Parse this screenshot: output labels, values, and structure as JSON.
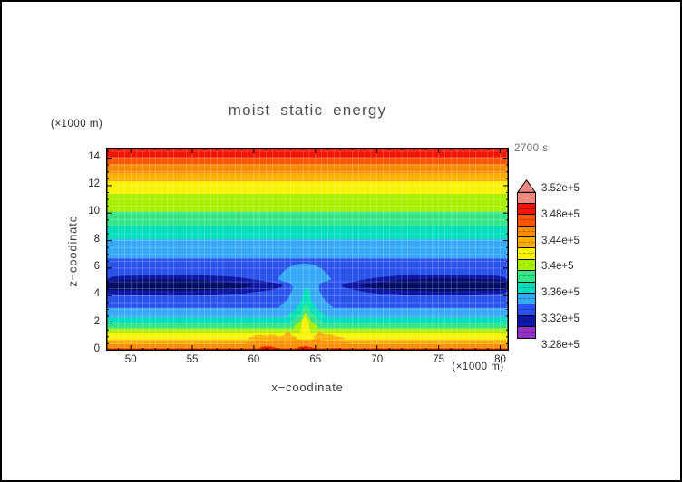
{
  "figure": {
    "title": "moist static energy",
    "time_label": "2700 s",
    "top_left_unit": "(×1000 m)",
    "bottom_right_unit": "(×1000 m)",
    "x_axis_label": "x−coodinate",
    "y_axis_label": "z−coodinate"
  },
  "chart_data": {
    "type": "filled_contour",
    "title": "moist static energy",
    "time": "2700 s",
    "xlabel": "x−coodinate",
    "ylabel": "z−coodinate",
    "x_unit": "(×1000 m)",
    "y_unit": "(×1000 m)",
    "x_range": [
      48.0,
      80.7
    ],
    "z_range": [
      0,
      14.76
    ],
    "x_ticks": [
      50,
      55,
      60,
      65,
      70,
      75,
      80
    ],
    "x_minor_tick_step": 1,
    "z_ticks": [
      0,
      2,
      4,
      6,
      8,
      10,
      12,
      14
    ],
    "z_minor_tick_step": 0.5,
    "grid": {
      "show": true,
      "step_x": 0.5,
      "step_z": 0.5,
      "color": "rgba(255,255,255,0.33)"
    },
    "colorbar": {
      "labels": [
        "3.52e+5",
        "3.48e+5",
        "3.44e+5",
        "3.4e+5",
        "3.36e+5",
        "3.32e+5",
        "3.28e+5"
      ],
      "arrow_color": "#F1887F",
      "bands_top_to_bottom": [
        {
          "color": "#F1887F",
          "from": 350000,
          "to": 352000
        },
        {
          "color": "#F01505",
          "from": 348000,
          "to": 350000
        },
        {
          "color": "#FA5500",
          "from": 346000,
          "to": 348000
        },
        {
          "color": "#FB8C00",
          "from": 344000,
          "to": 346000
        },
        {
          "color": "#FCAE00",
          "from": 342000,
          "to": 344000
        },
        {
          "color": "#FAF300",
          "from": 340000,
          "to": 342000
        },
        {
          "color": "#A9EF00",
          "from": 338000,
          "to": 340000
        },
        {
          "color": "#35E689",
          "from": 336000,
          "to": 338000
        },
        {
          "color": "#00DFBB",
          "from": 334000,
          "to": 336000
        },
        {
          "color": "#36A8F8",
          "from": 332000,
          "to": 334000
        },
        {
          "color": "#2A52EC",
          "from": 330000,
          "to": 332000
        },
        {
          "color": "#0E18A4",
          "from": 328000,
          "to": 330000
        },
        {
          "color": "#9231C8",
          "from": 326000,
          "to": 328000
        }
      ]
    },
    "background_layers": [
      {
        "value_band": "348000-350000",
        "color": "#F01505",
        "z": [
          14.05,
          14.76
        ]
      },
      {
        "value_band": "346000-348000",
        "color": "#FA5500",
        "z": [
          13.55,
          14.05
        ]
      },
      {
        "value_band": "344000-346000",
        "color": "#FB8C00",
        "z": [
          12.9,
          13.55
        ]
      },
      {
        "value_band": "342000-344000",
        "color": "#FCAE00",
        "z": [
          12.3,
          12.9
        ]
      },
      {
        "value_band": "340000-342000",
        "color": "#FAF300",
        "z": [
          11.4,
          12.3
        ]
      },
      {
        "value_band": "338000-340000",
        "color": "#A9EF00",
        "z": [
          10.1,
          11.4
        ]
      },
      {
        "value_band": "336000-338000",
        "color": "#35E689",
        "z": [
          9.1,
          10.1
        ]
      },
      {
        "value_band": "334000-336000",
        "color": "#00DFBB",
        "z": [
          8.1,
          9.1
        ]
      },
      {
        "value_band": "332000-334000",
        "color": "#36A8F8",
        "z": [
          6.7,
          8.1
        ]
      },
      {
        "value_band": "330000-332000",
        "color": "#2A52EC",
        "z": [
          3.1,
          6.7
        ]
      },
      {
        "value_band": "332000-334000",
        "color": "#36A8F8",
        "z": [
          2.4,
          3.1
        ]
      },
      {
        "value_band": "334000-336000",
        "color": "#00DFBB",
        "z": [
          2.0,
          2.4
        ]
      },
      {
        "value_band": "336000-338000",
        "color": "#35E689",
        "z": [
          1.6,
          2.0
        ]
      },
      {
        "value_band": "338000-340000",
        "color": "#A9EF00",
        "z": [
          1.25,
          1.6
        ]
      },
      {
        "value_band": "340000-342000",
        "color": "#FAF300",
        "z": [
          0.78,
          1.25
        ]
      },
      {
        "value_band": "342000-344000",
        "color": "#FCAE00",
        "z": [
          0.46,
          0.78
        ]
      },
      {
        "value_band": "344000-346000",
        "color": "#FB8C00",
        "z": [
          0.2,
          0.46
        ]
      },
      {
        "value_band": "346000-348000",
        "color": "#FA5500",
        "z": [
          0.0,
          0.2
        ]
      }
    ],
    "features": [
      {
        "name": "mse-minimum-navy-band-left",
        "color": "#0E18A4",
        "smooth": true,
        "points": [
          [
            47.9,
            5.38
          ],
          [
            50,
            5.45
          ],
          [
            53,
            5.5
          ],
          [
            56,
            5.48
          ],
          [
            58.5,
            5.38
          ],
          [
            60.3,
            5.12
          ],
          [
            61.7,
            4.95
          ],
          [
            62.55,
            4.72
          ],
          [
            61.7,
            4.45
          ],
          [
            60.3,
            4.28
          ],
          [
            58.5,
            4.08
          ],
          [
            56,
            4.0
          ],
          [
            53,
            3.98
          ],
          [
            50,
            4.05
          ],
          [
            47.9,
            4.02
          ]
        ]
      },
      {
        "name": "mse-minimum-navy-band-right",
        "color": "#0E18A4",
        "smooth": true,
        "points": [
          [
            80.8,
            5.42
          ],
          [
            78,
            5.5
          ],
          [
            75,
            5.55
          ],
          [
            72,
            5.5
          ],
          [
            69.8,
            5.3
          ],
          [
            68.2,
            5.05
          ],
          [
            66.8,
            4.72
          ],
          [
            68.2,
            4.4
          ],
          [
            69.8,
            4.15
          ],
          [
            72,
            4.02
          ],
          [
            75,
            3.98
          ],
          [
            78,
            4.02
          ],
          [
            80.8,
            4.08
          ]
        ]
      },
      {
        "name": "mse-minimum-dark-core-left",
        "color": "#010C66",
        "smooth": true,
        "points": [
          [
            47.9,
            5.05
          ],
          [
            50,
            5.15
          ],
          [
            53,
            5.2
          ],
          [
            56,
            5.1
          ],
          [
            58.5,
            4.95
          ],
          [
            60.2,
            4.72
          ],
          [
            58.5,
            4.5
          ],
          [
            56,
            4.38
          ],
          [
            53,
            4.35
          ],
          [
            50,
            4.4
          ],
          [
            47.9,
            4.42
          ]
        ]
      },
      {
        "name": "mse-minimum-dark-core-right",
        "color": "#010C66",
        "smooth": true,
        "points": [
          [
            80.8,
            5.12
          ],
          [
            78,
            5.22
          ],
          [
            75,
            5.25
          ],
          [
            72,
            5.15
          ],
          [
            69.9,
            4.95
          ],
          [
            68.35,
            4.72
          ],
          [
            69.9,
            4.5
          ],
          [
            72,
            4.38
          ],
          [
            75,
            4.32
          ],
          [
            78,
            4.35
          ],
          [
            80.8,
            4.4
          ]
        ]
      },
      {
        "name": "updraft-plume-sky-blue",
        "color": "#36A8F8",
        "smooth": true,
        "points": [
          [
            61.85,
            3.05
          ],
          [
            62.3,
            3.35
          ],
          [
            62.75,
            3.75
          ],
          [
            63.05,
            4.2
          ],
          [
            63.2,
            4.65
          ],
          [
            62.9,
            4.95
          ],
          [
            62.3,
            5.05
          ],
          [
            61.95,
            5.2
          ],
          [
            61.95,
            5.2
          ],
          [
            62.3,
            5.7
          ],
          [
            62.8,
            6.05
          ],
          [
            63.4,
            6.28
          ],
          [
            64.1,
            6.35
          ],
          [
            64.8,
            6.28
          ],
          [
            65.35,
            6.05
          ],
          [
            65.85,
            5.7
          ],
          [
            66.3,
            5.2
          ],
          [
            66.3,
            5.2
          ],
          [
            65.9,
            5.03
          ],
          [
            65.4,
            4.93
          ],
          [
            65.25,
            4.6
          ],
          [
            65.4,
            4.15
          ],
          [
            65.75,
            3.7
          ],
          [
            66.2,
            3.3
          ],
          [
            66.65,
            3.05
          ]
        ]
      },
      {
        "name": "updraft-plume-teal-cone",
        "color": "#00DFBB",
        "smooth": true,
        "points": [
          [
            62.35,
            2.38
          ],
          [
            62.9,
            2.7
          ],
          [
            63.45,
            3.1
          ],
          [
            63.8,
            3.55
          ],
          [
            63.95,
            4.0
          ],
          [
            64.05,
            4.4
          ],
          [
            64.3,
            4.62
          ],
          [
            64.3,
            4.62
          ],
          [
            64.55,
            4.35
          ],
          [
            64.6,
            3.95
          ],
          [
            64.75,
            3.5
          ],
          [
            65.1,
            3.05
          ],
          [
            65.6,
            2.7
          ],
          [
            66.15,
            2.38
          ]
        ]
      },
      {
        "name": "updraft-plume-green-cone",
        "color": "#35E689",
        "smooth": true,
        "points": [
          [
            62.7,
            1.98
          ],
          [
            63.3,
            2.35
          ],
          [
            63.8,
            2.75
          ],
          [
            64.1,
            3.2
          ],
          [
            64.2,
            3.5
          ],
          [
            64.2,
            3.5
          ],
          [
            64.45,
            3.15
          ],
          [
            64.7,
            2.7
          ],
          [
            65.2,
            2.3
          ],
          [
            65.8,
            1.98
          ]
        ]
      },
      {
        "name": "updraft-plume-chartreuse-cone",
        "color": "#A9EF00",
        "smooth": true,
        "points": [
          [
            63.0,
            1.58
          ],
          [
            63.55,
            1.95
          ],
          [
            63.95,
            2.35
          ],
          [
            64.2,
            2.8
          ],
          [
            64.2,
            2.8
          ],
          [
            64.45,
            2.4
          ],
          [
            64.75,
            2.0
          ],
          [
            65.55,
            1.58
          ]
        ]
      },
      {
        "name": "surface-amber-bumps",
        "color": "#FCAE00",
        "smooth": true,
        "points": [
          [
            59.2,
            0.78
          ],
          [
            59.8,
            1.0
          ],
          [
            60.4,
            1.18
          ],
          [
            61.0,
            1.05
          ],
          [
            61.55,
            1.18
          ],
          [
            62.1,
            1.0
          ],
          [
            62.5,
            1.12
          ],
          [
            62.78,
            1.58
          ],
          [
            63.05,
            1.1
          ],
          [
            63.35,
            1.0
          ],
          [
            63.7,
            0.95
          ],
          [
            64.3,
            0.95
          ],
          [
            64.75,
            1.0
          ],
          [
            65.1,
            1.12
          ],
          [
            65.38,
            1.55
          ],
          [
            65.65,
            1.1
          ],
          [
            66.1,
            1.2
          ],
          [
            66.6,
            1.05
          ],
          [
            67.1,
            1.0
          ],
          [
            67.7,
            0.78
          ]
        ]
      },
      {
        "name": "surface-orange-bumps",
        "color": "#FB8C00",
        "smooth": true,
        "points": [
          [
            58.8,
            0.46
          ],
          [
            59.6,
            0.62
          ],
          [
            60.4,
            0.78
          ],
          [
            61.2,
            0.66
          ],
          [
            62.0,
            0.8
          ],
          [
            62.8,
            0.68
          ],
          [
            63.6,
            0.78
          ],
          [
            64.4,
            0.72
          ],
          [
            65.2,
            0.82
          ],
          [
            66.0,
            0.68
          ],
          [
            66.8,
            0.75
          ],
          [
            67.6,
            0.58
          ],
          [
            68.3,
            0.46
          ]
        ]
      },
      {
        "name": "surface-red-patch-left",
        "color": "#F01505",
        "smooth": false,
        "points": [
          [
            60.2,
            0.0
          ],
          [
            60.45,
            0.22
          ],
          [
            60.9,
            0.32
          ],
          [
            61.5,
            0.28
          ],
          [
            62.0,
            0.14
          ],
          [
            62.2,
            0.0
          ]
        ]
      },
      {
        "name": "surface-red-patch-center",
        "color": "#F01505",
        "smooth": false,
        "points": [
          [
            63.35,
            0.0
          ],
          [
            63.65,
            0.26
          ],
          [
            64.25,
            0.32
          ],
          [
            64.85,
            0.2
          ],
          [
            65.25,
            0.0
          ]
        ]
      },
      {
        "name": "surface-red-patch-right",
        "color": "#F01505",
        "smooth": false,
        "points": [
          [
            66.1,
            0.0
          ],
          [
            66.4,
            0.2
          ],
          [
            66.9,
            0.16
          ],
          [
            67.15,
            0.0
          ]
        ]
      },
      {
        "name": "updraft-yellow-core",
        "color": "#FAF300",
        "smooth": true,
        "points": [
          [
            63.3,
            0.8
          ],
          [
            63.6,
            1.05
          ],
          [
            63.8,
            1.45
          ],
          [
            63.88,
            1.9
          ],
          [
            63.95,
            2.25
          ],
          [
            64.18,
            2.47
          ],
          [
            64.18,
            2.47
          ],
          [
            64.42,
            2.2
          ],
          [
            64.45,
            1.85
          ],
          [
            64.55,
            1.4
          ],
          [
            64.75,
            1.05
          ],
          [
            65.05,
            0.8
          ]
        ]
      }
    ]
  }
}
